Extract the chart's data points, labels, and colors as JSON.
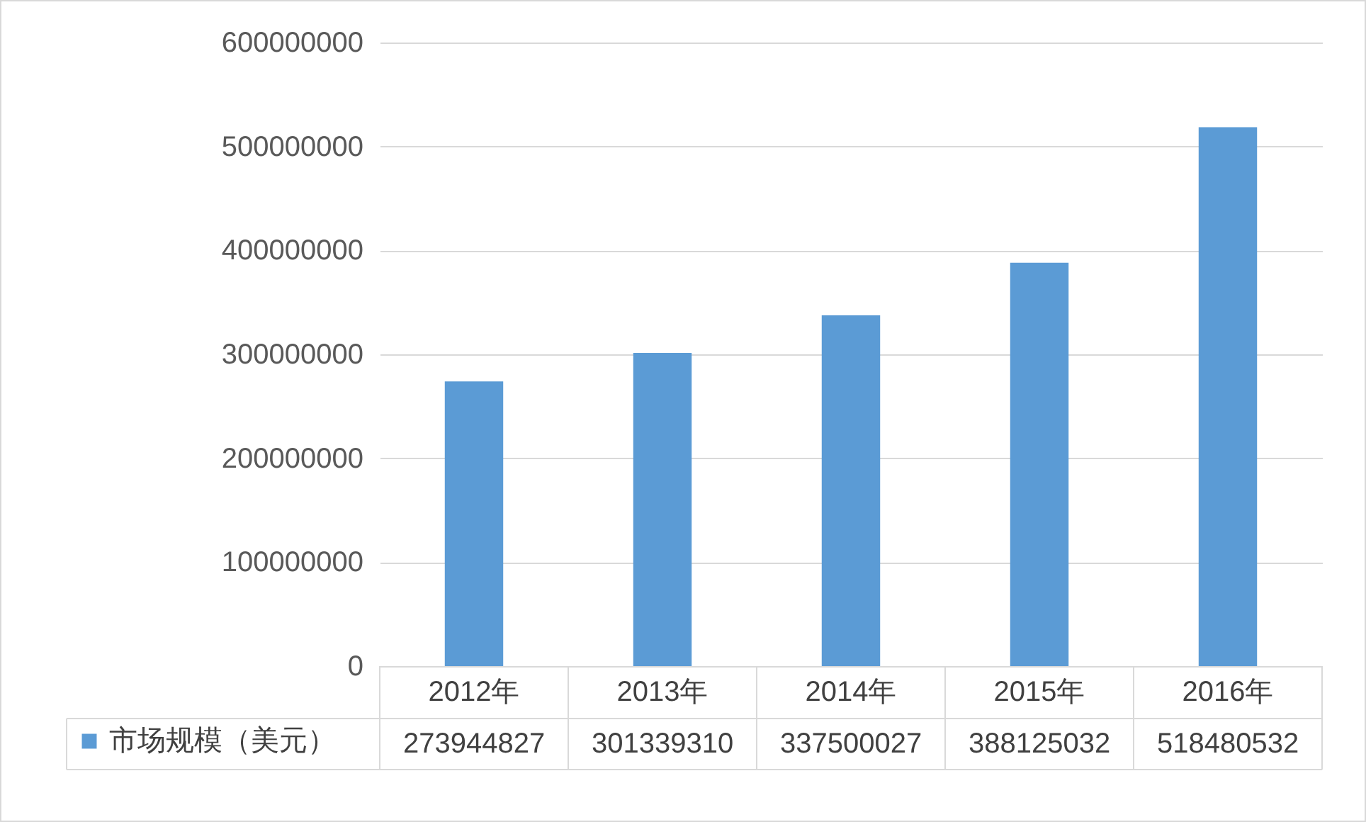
{
  "chart_data": {
    "type": "bar",
    "categories": [
      "2012年",
      "2013年",
      "2014年",
      "2015年",
      "2016年"
    ],
    "series": [
      {
        "name": "市场规模（美元）",
        "color": "#5b9bd5",
        "values": [
          273944827,
          301339310,
          337500027,
          388125032,
          518480532
        ]
      }
    ],
    "ylim": [
      0,
      600000000
    ],
    "yticks": [
      0,
      100000000,
      200000000,
      300000000,
      400000000,
      500000000,
      600000000
    ],
    "grid": "y",
    "legend": "bottom left",
    "data_labels": true
  }
}
